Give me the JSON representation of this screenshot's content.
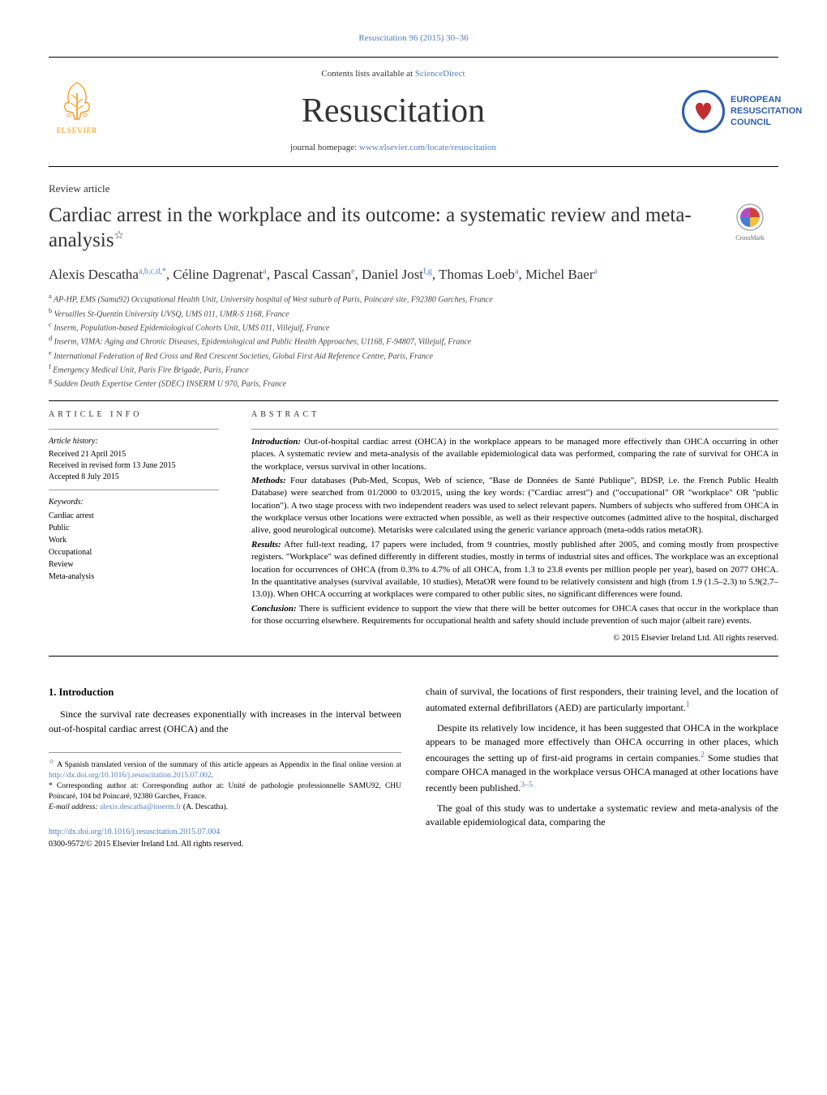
{
  "running_head": "Resuscitation 96 (2015) 30–36",
  "masthead": {
    "contents_prefix": "Contents lists available at ",
    "contents_link": "ScienceDirect",
    "journal_name": "Resuscitation",
    "homepage_prefix": "journal homepage: ",
    "homepage_link": "www.elsevier.com/locate/resuscitation",
    "elsevier_label": "ELSEVIER",
    "erc_line1": "EUROPEAN",
    "erc_line2": "RESUSCITATION",
    "erc_line3": "COUNCIL"
  },
  "article_type": "Review article",
  "title": "Cardiac arrest in the workplace and its outcome: a systematic review and meta-analysis",
  "title_footnote_marker": "☆",
  "crossmark_label": "CrossMark",
  "authors_html": "Alexis Descatha<sup>a,b,c,d,*</sup>, Céline Dagrenat<sup>a</sup>, Pascal Cassan<sup>e</sup>, Daniel Jost<sup>f,g</sup>, Thomas Loeb<sup>a</sup>, Michel Baer<sup>a</sup>",
  "affiliations": [
    {
      "key": "a",
      "text": "AP-HP, EMS (Samu92) Occupational Health Unit, University hospital of West suburb of Paris, Poincaré site, F92380 Garches, France"
    },
    {
      "key": "b",
      "text": "Versailles St-Quentin University UVSQ, UMS 011, UMR-S 1168, France"
    },
    {
      "key": "c",
      "text": "Inserm, Population-based Epidemiological Cohorts Unit, UMS 011, Villejuif, France"
    },
    {
      "key": "d",
      "text": "Inserm, VIMA: Aging and Chronic Diseases, Epidemiological and Public Health Approaches, U1168, F-94807, Villejuif, France"
    },
    {
      "key": "e",
      "text": "International Federation of Red Cross and Red Crescent Societies, Global First Aid Reference Centre, Paris, France"
    },
    {
      "key": "f",
      "text": "Emergency Medical Unit, Paris Fire Brigade, Paris, France"
    },
    {
      "key": "g",
      "text": "Sudden Death Expertise Center (SDEC) INSERM U 970, Paris, France"
    }
  ],
  "article_info": {
    "heading": "article info",
    "history_label": "Article history:",
    "received": "Received 21 April 2015",
    "revised": "Received in revised form 13 June 2015",
    "accepted": "Accepted 8 July 2015",
    "keywords_label": "Keywords:",
    "keywords": [
      "Cardiac arrest",
      "Public",
      "Work",
      "Occupational",
      "Review",
      "Meta-analysis"
    ]
  },
  "abstract": {
    "heading": "abstract",
    "intro_label": "Introduction:",
    "intro": "Out-of-hospital cardiac arrest (OHCA) in the workplace appears to be managed more effectively than OHCA occurring in other places. A systematic review and meta-analysis of the available epidemiological data was performed, comparing the rate of survival for OHCA in the workplace, versus survival in other locations.",
    "methods_label": "Methods:",
    "methods": "Four databases (Pub-Med, Scopus, Web of science, \"Base de Données de Santé Publique\", BDSP, i.e. the French Public Health Database) were searched from 01/2000 to 03/2015, using the key words: (\"Cardiac arrest\") and (\"occupational\" OR \"workplace\" OR \"public location\"). A two stage process with two independent readers was used to select relevant papers. Numbers of subjects who suffered from OHCA in the workplace versus other locations were extracted when possible, as well as their respective outcomes (admitted alive to the hospital, discharged alive, good neurological outcome). Metarisks were calculated using the generic variance approach (meta-odds ratios metaOR).",
    "results_label": "Results:",
    "results": "After full-text reading, 17 papers were included, from 9 countries, mostly published after 2005, and coming mostly from prospective registers. \"Workplace\" was defined differently in different studies, mostly in terms of industrial sites and offices. The workplace was an exceptional location for occurrences of OHCA (from 0.3% to 4.7% of all OHCA, from 1.3 to 23.8 events per million people per year), based on 2077 OHCA. In the quantitative analyses (survival available, 10 studies), MetaOR were found to be relatively consistent and high (from 1.9 (1.5–2.3) to 5.9(2.7–13.0)). When OHCA occurring at workplaces were compared to other public sites, no significant differences were found.",
    "conclusion_label": "Conclusion:",
    "conclusion": "There is sufficient evidence to support the view that there will be better outcomes for OHCA cases that occur in the workplace than for those occurring elsewhere. Requirements for occupational health and safety should include prevention of such major (albeit rare) events.",
    "copyright": "© 2015 Elsevier Ireland Ltd. All rights reserved."
  },
  "body": {
    "section_number": "1.",
    "section_title": "Introduction",
    "col1_p1": "Since the survival rate decreases exponentially with increases in the interval between out-of-hospital cardiac arrest (OHCA) and the",
    "col2_p1_a": "chain of survival, the locations of first responders, their training level, and the location of automated external defibrillators (AED) are particularly important.",
    "col2_p1_ref1": "1",
    "col2_p2_a": "Despite its relatively low incidence, it has been suggested that OHCA in the workplace appears to be managed more effectively than OHCA occurring in other places, which encourages the setting up of first-aid programs in certain companies.",
    "col2_p2_ref2": "2",
    "col2_p2_b": " Some studies that compare OHCA managed in the workplace versus OHCA managed at other locations have recently been published.",
    "col2_p2_ref3": "3–5",
    "col2_p3": "The goal of this study was to undertake a systematic review and meta-analysis of the available epidemiological data, comparing the"
  },
  "footnotes": {
    "star_marker": "☆",
    "star_text_a": "A Spanish translated version of the summary of this article appears as Appendix in the final online version at ",
    "star_link": "http://dx.doi.org/10.1016/j.resuscitation.2015.07.002",
    "star_text_b": ".",
    "corr_marker": "*",
    "corr_text": "Corresponding author at: Corresponding author at: Unité de pathologie professionnelle SAMU92, CHU Poincaré, 104 bd Poincaré, 92380 Garches, France.",
    "email_label": "E-mail address:",
    "email": "alexis.descatha@inserm.fr",
    "email_author": "(A. Descatha)."
  },
  "doi": {
    "link": "http://dx.doi.org/10.1016/j.resuscitation.2015.07.004",
    "issn_copyright": "0300-9572/© 2015 Elsevier Ireland Ltd. All rights reserved."
  },
  "colors": {
    "link": "#5080c0",
    "elsevier_orange": "#ff8c00",
    "erc_blue": "#3060b0",
    "text": "#000000",
    "rule": "#000000",
    "rule_light": "#999999",
    "background": "#ffffff"
  },
  "typography": {
    "journal_name_fontsize": 42,
    "title_fontsize": 25,
    "authors_fontsize": 17,
    "body_fontsize": 12,
    "abstract_fontsize": 11,
    "affil_fontsize": 10,
    "footnote_fontsize": 9.5
  }
}
